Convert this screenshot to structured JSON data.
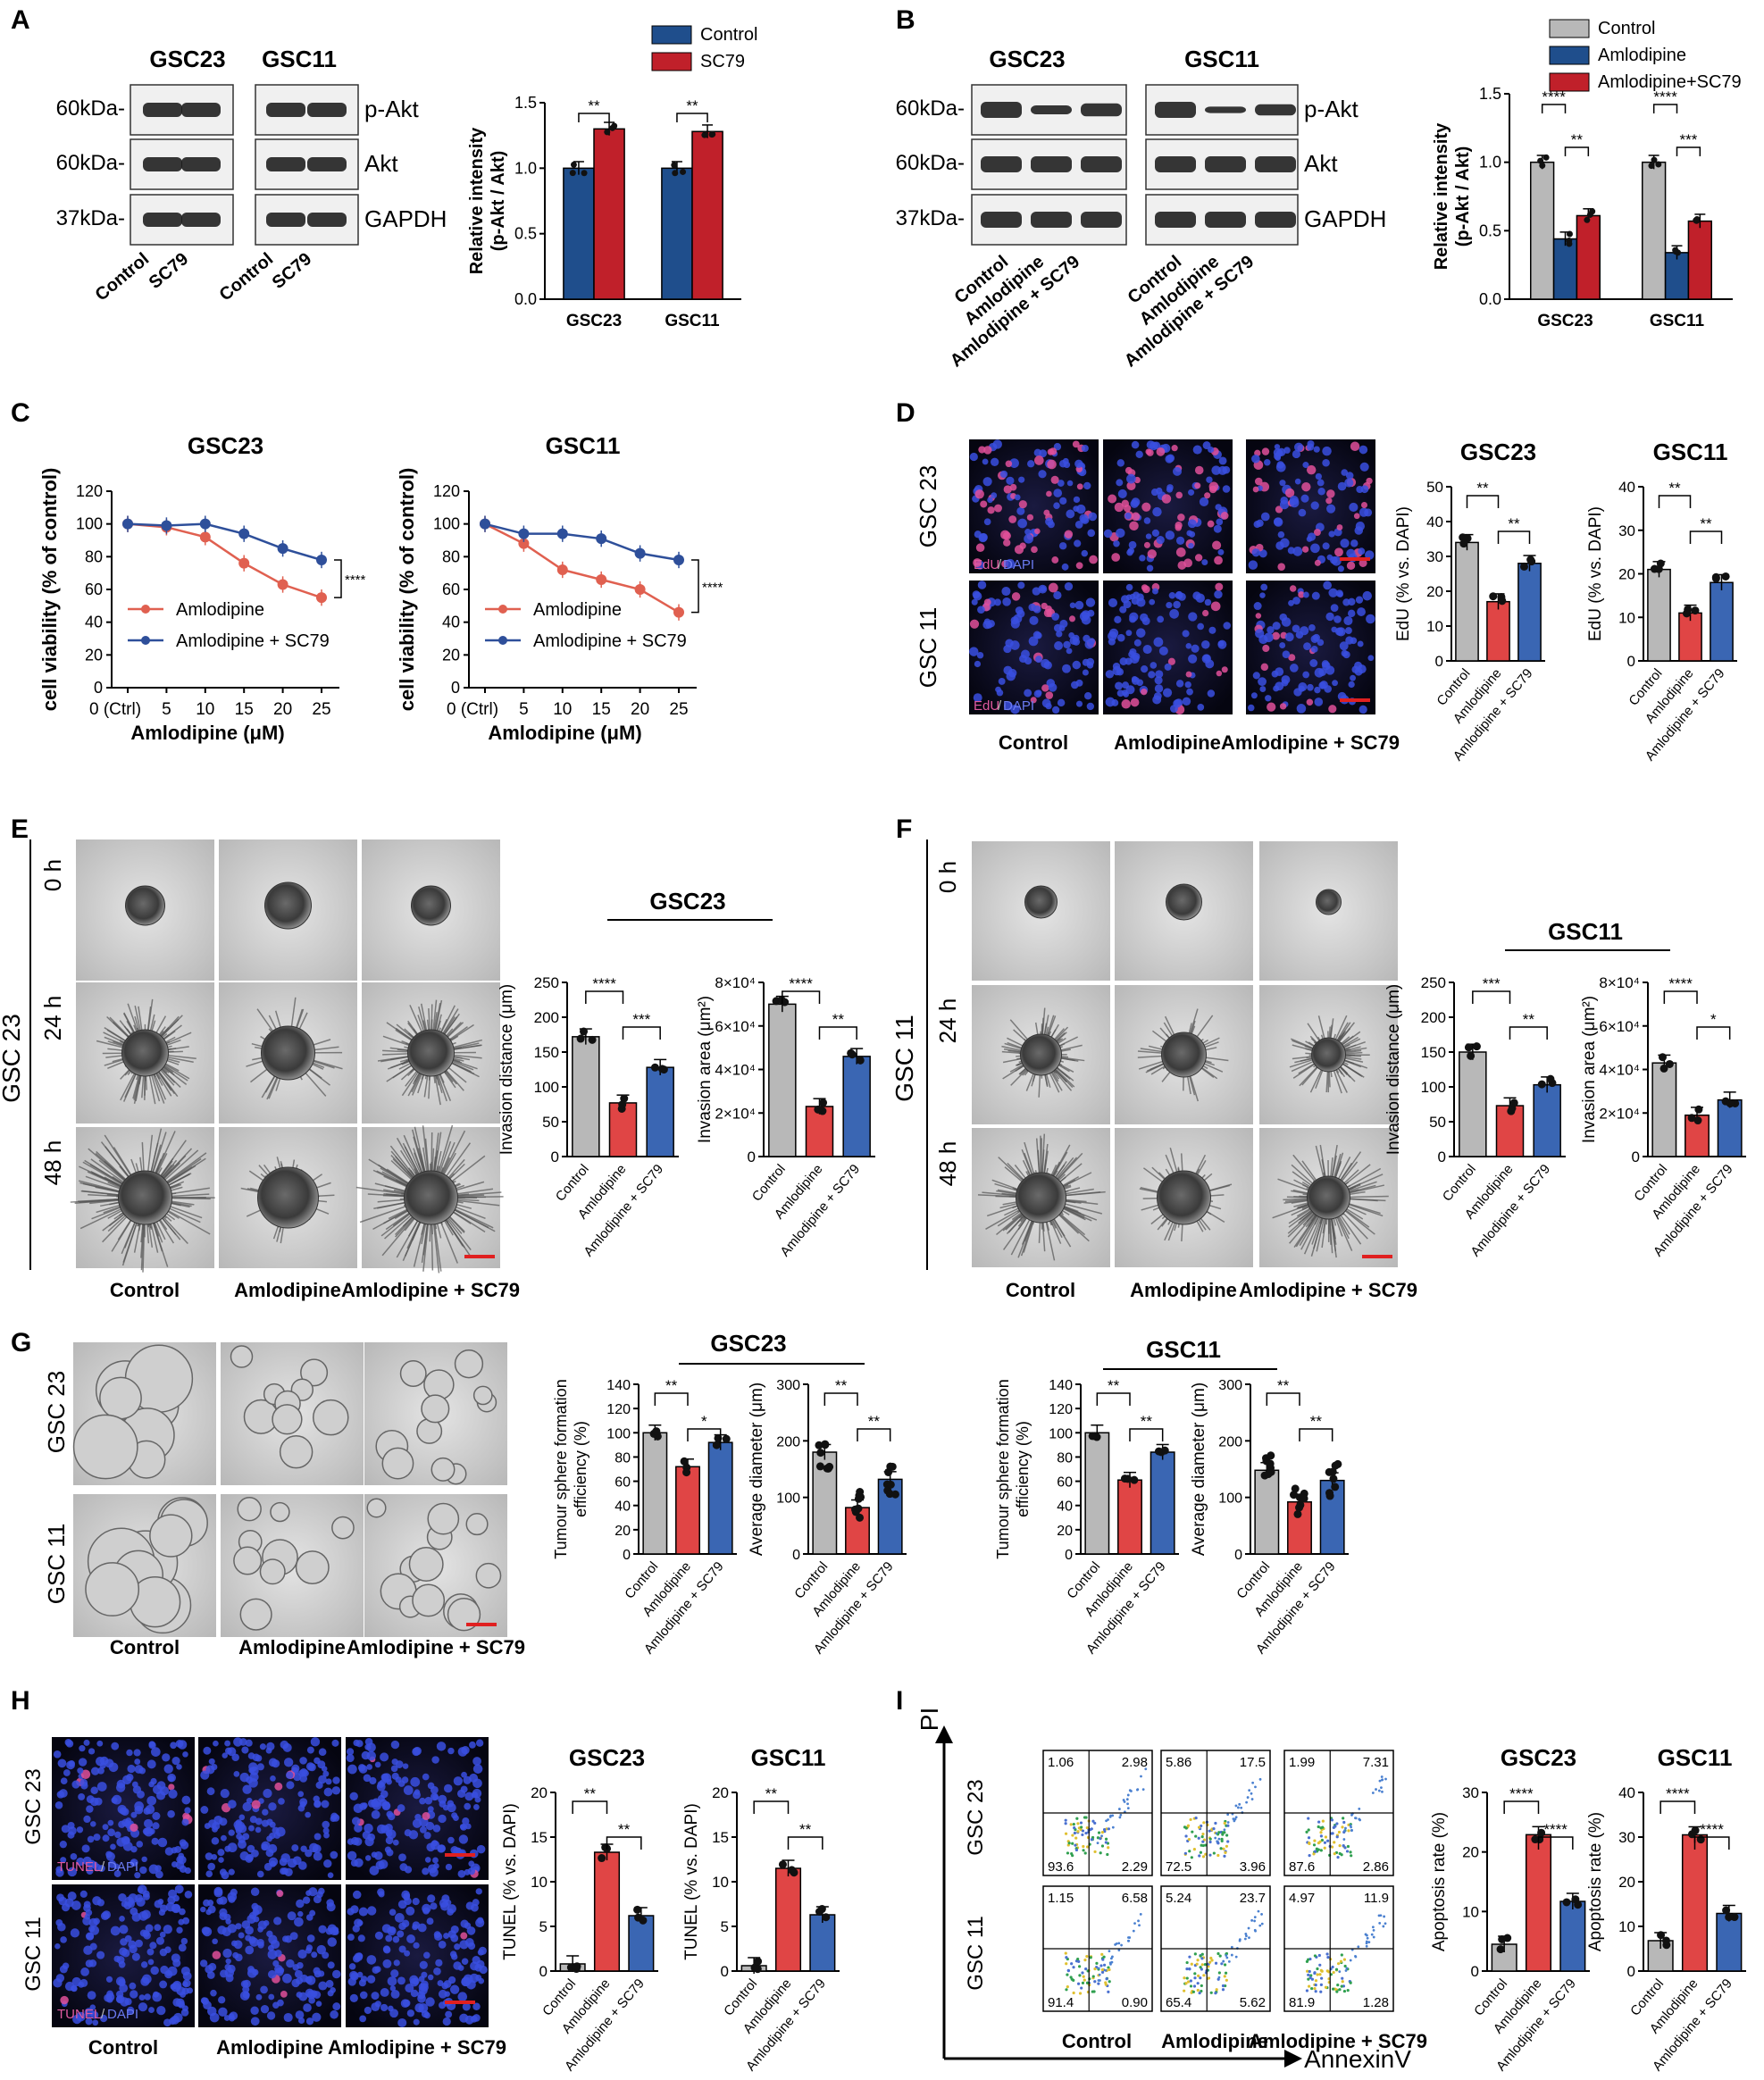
{
  "colors": {
    "control": "#b8b8b8",
    "amlodipine": "#1f4e8c",
    "amlodipine_sc79": "#c0202a",
    "a_control": "#1f4e8c",
    "a_sc79": "#c0202a",
    "blue3": "#3a66b3",
    "red3": "#e04545",
    "line_red": "#e06050",
    "line_blue": "#2e4f9a"
  },
  "panel_letters": [
    "A",
    "B",
    "C",
    "D",
    "E",
    "F",
    "G",
    "H",
    "I"
  ],
  "blots": {
    "A": {
      "cell_lines": [
        "GSC23",
        "GSC11"
      ],
      "kda": [
        "60kDa-",
        "60kDa-",
        "37kDa-"
      ],
      "bands": [
        "p-Akt",
        "Akt",
        "GAPDH"
      ],
      "lanes": [
        "Control",
        "SC79"
      ]
    },
    "B": {
      "cell_lines": [
        "GSC23",
        "GSC11"
      ],
      "kda": [
        "60kDa-",
        "60kDa-",
        "37kDa-"
      ],
      "bands": [
        "p-Akt",
        "Akt",
        "GAPDH"
      ],
      "lanes": [
        "Control",
        "Amlodipine",
        "Amlodipine + SC79"
      ]
    }
  },
  "images": {
    "D": {
      "rows": [
        "GSC 23",
        "GSC 11"
      ],
      "cols": [
        "Control",
        "Amlodipine",
        "Amlodipine + SC79"
      ],
      "stain": [
        "EdU",
        "/",
        "DAPI"
      ]
    },
    "E": {
      "cell_line": "GSC 23",
      "rows": [
        "0 h",
        "24 h",
        "48 h"
      ],
      "cols": [
        "Control",
        "Amlodipine",
        "Amlodipine + SC79"
      ]
    },
    "F": {
      "cell_line": "GSC 11",
      "rows": [
        "0 h",
        "24 h",
        "48 h"
      ],
      "cols": [
        "Control",
        "Amlodipine",
        "Amlodipine + SC79"
      ]
    },
    "G": {
      "rows": [
        "GSC 23",
        "GSC 11"
      ],
      "cols": [
        "Control",
        "Amlodipine",
        "Amlodipine + SC79"
      ]
    },
    "H": {
      "rows": [
        "GSC 23",
        "GSC 11"
      ],
      "cols": [
        "Control",
        "Amlodipine",
        "Amlodipine + SC79"
      ],
      "stain": [
        "TUNEL",
        "/",
        "DAPI"
      ]
    },
    "I": {
      "rows": [
        "GSC 23",
        "GSC 11"
      ],
      "cols": [
        "Control",
        "Amlodipine",
        "Amlodipine + SC79"
      ],
      "y_axis": "PI",
      "x_axis": "AnnexinV",
      "quadrants": [
        [
          [
            "1.06",
            "2.98",
            "93.6",
            "2.29"
          ],
          [
            "5.86",
            "17.5",
            "72.5",
            "3.96"
          ],
          [
            "1.99",
            "7.31",
            "87.6",
            "2.86"
          ]
        ],
        [
          [
            "1.15",
            "6.58",
            "91.4",
            "0.90"
          ],
          [
            "5.24",
            "23.7",
            "65.4",
            "5.62"
          ],
          [
            "4.97",
            "11.9",
            "81.9",
            "1.28"
          ]
        ]
      ]
    }
  },
  "group_titles": {
    "E": "GSC23",
    "F": "GSC11",
    "G1": "GSC23",
    "G2": "GSC11"
  },
  "chart_data": [
    {
      "id": "A_bar",
      "type": "bar",
      "categories": [
        "GSC23",
        "GSC11"
      ],
      "series": [
        {
          "name": "Control",
          "values": [
            1.0,
            1.0
          ]
        },
        {
          "name": "SC79",
          "values": [
            1.3,
            1.28
          ]
        }
      ],
      "ylabel": "Relative intensity\n(p-Akt / Akt)",
      "ylim": [
        0,
        1.5
      ],
      "yticks": [
        "0.0",
        "0.5",
        "1.0",
        "1.5"
      ],
      "significance": [
        "**",
        "**"
      ]
    },
    {
      "id": "B_bar",
      "type": "bar",
      "categories": [
        "GSC23",
        "GSC11"
      ],
      "series": [
        {
          "name": "Control",
          "values": [
            1.0,
            1.0
          ]
        },
        {
          "name": "Amlodipine",
          "values": [
            0.44,
            0.34
          ]
        },
        {
          "name": "Amlodipine+SC79",
          "values": [
            0.61,
            0.57
          ]
        }
      ],
      "ylabel": "Relative intensity\n(p-Akt / Akt)",
      "ylim": [
        0,
        1.5
      ],
      "yticks": [
        "0.0",
        "0.5",
        "1.0",
        "1.5"
      ],
      "significance": [
        [
          "****",
          "**"
        ],
        [
          "****",
          "***"
        ]
      ]
    },
    {
      "id": "C_GSC23",
      "type": "line",
      "title": "GSC23",
      "x": [
        0,
        5,
        10,
        15,
        20,
        25
      ],
      "xticks": [
        "0 (Ctrl)",
        "5",
        "10",
        "15",
        "20",
        "25"
      ],
      "series": [
        {
          "name": "Amlodipine",
          "values": [
            100,
            98,
            92,
            76,
            63,
            55
          ]
        },
        {
          "name": "Amlodipine + SC79",
          "values": [
            100,
            99,
            100,
            94,
            85,
            78
          ]
        }
      ],
      "xlabel": "Amlodipine (μM)",
      "ylabel": "cell viability (% of control)",
      "ylim": [
        0,
        120
      ],
      "yticks": [
        "0",
        "20",
        "40",
        "60",
        "80",
        "100",
        "120"
      ],
      "significance": "****"
    },
    {
      "id": "C_GSC11",
      "type": "line",
      "title": "GSC11",
      "x": [
        0,
        5,
        10,
        15,
        20,
        25
      ],
      "xticks": [
        "0 (Ctrl)",
        "5",
        "10",
        "15",
        "20",
        "25"
      ],
      "series": [
        {
          "name": "Amlodipine",
          "values": [
            100,
            88,
            72,
            66,
            60,
            46
          ]
        },
        {
          "name": "Amlodipine + SC79",
          "values": [
            100,
            94,
            94,
            91,
            82,
            78
          ]
        }
      ],
      "xlabel": "Amlodipine (μM)",
      "ylabel": "cell viability (% of control)",
      "ylim": [
        0,
        120
      ],
      "yticks": [
        "0",
        "20",
        "40",
        "60",
        "80",
        "100",
        "120"
      ],
      "significance": "****"
    },
    {
      "id": "D_GSC23",
      "type": "bar",
      "title": "GSC23",
      "categories": [
        "Control",
        "Amlodipine",
        "Amlodipine + SC79"
      ],
      "values": [
        34,
        17,
        28
      ],
      "ylabel": "EdU (% vs. DAPI)",
      "ylim": [
        0,
        50
      ],
      "yticks": [
        "0",
        "10",
        "20",
        "30",
        "40",
        "50"
      ],
      "significance": [
        "**",
        "**"
      ]
    },
    {
      "id": "D_GSC11",
      "type": "bar",
      "title": "GSC11",
      "categories": [
        "Control",
        "Amlodipine",
        "Amlodipine + SC79"
      ],
      "values": [
        21,
        11,
        18
      ],
      "ylabel": "EdU (% vs. DAPI)",
      "ylim": [
        0,
        40
      ],
      "yticks": [
        "0",
        "10",
        "20",
        "30",
        "40"
      ],
      "significance": [
        "**",
        "**"
      ]
    },
    {
      "id": "E_dist",
      "type": "bar",
      "categories": [
        "Control",
        "Amlodipine",
        "Amlodipine + SC79"
      ],
      "values": [
        172,
        77,
        128
      ],
      "ylabel": "Invasion distance (μm)",
      "ylim": [
        0,
        250
      ],
      "yticks": [
        "0",
        "50",
        "100",
        "150",
        "200",
        "250"
      ],
      "significance": [
        "****",
        "***"
      ]
    },
    {
      "id": "E_area",
      "type": "bar",
      "categories": [
        "Control",
        "Amlodipine",
        "Amlodipine + SC79"
      ],
      "values": [
        70000,
        23000,
        46000
      ],
      "ylabel": "Invasion area (μm²)",
      "ylim": [
        0,
        80000
      ],
      "yticks": [
        "0",
        "2×10⁴",
        "4×10⁴",
        "6×10⁴",
        "8×10⁴"
      ],
      "significance": [
        "****",
        "**"
      ]
    },
    {
      "id": "F_dist",
      "type": "bar",
      "categories": [
        "Control",
        "Amlodipine",
        "Amlodipine + SC79"
      ],
      "values": [
        150,
        73,
        103
      ],
      "ylabel": "Invasion distance (μm)",
      "ylim": [
        0,
        250
      ],
      "yticks": [
        "0",
        "50",
        "100",
        "150",
        "200",
        "250"
      ],
      "significance": [
        "***",
        "**"
      ]
    },
    {
      "id": "F_area",
      "type": "bar",
      "categories": [
        "Control",
        "Amlodipine",
        "Amlodipine + SC79"
      ],
      "values": [
        43000,
        19000,
        26000
      ],
      "ylabel": "Invasion area (μm²)",
      "ylim": [
        0,
        80000
      ],
      "yticks": [
        "0",
        "2×10⁴",
        "4×10⁴",
        "6×10⁴",
        "8×10⁴"
      ],
      "significance": [
        "****",
        "*"
      ]
    },
    {
      "id": "G23_eff",
      "type": "bar",
      "categories": [
        "Control",
        "Amlodipine",
        "Amlodipine + SC79"
      ],
      "values": [
        100,
        72,
        92
      ],
      "ylabel": "Tumour sphere formation\nefficiency (%)",
      "ylim": [
        0,
        140
      ],
      "yticks": [
        "0",
        "20",
        "40",
        "60",
        "80",
        "100",
        "120",
        "140"
      ],
      "significance": [
        "**",
        "*"
      ]
    },
    {
      "id": "G23_diam",
      "type": "bar",
      "categories": [
        "Control",
        "Amlodipine",
        "Amlodipine + SC79"
      ],
      "values": [
        180,
        82,
        132
      ],
      "ylabel": "Average diameter (μm)",
      "ylim": [
        0,
        300
      ],
      "yticks": [
        "0",
        "100",
        "200",
        "300"
      ],
      "significance": [
        "**",
        "**"
      ]
    },
    {
      "id": "G11_eff",
      "type": "bar",
      "categories": [
        "Control",
        "Amlodipine",
        "Amlodipine + SC79"
      ],
      "values": [
        100,
        61,
        84
      ],
      "ylabel": "Tumour sphere formation\nefficiency (%)",
      "ylim": [
        0,
        140
      ],
      "yticks": [
        "0",
        "20",
        "40",
        "60",
        "80",
        "100",
        "120",
        "140"
      ],
      "significance": [
        "**",
        "**"
      ]
    },
    {
      "id": "G11_diam",
      "type": "bar",
      "categories": [
        "Control",
        "Amlodipine",
        "Amlodipine + SC79"
      ],
      "values": [
        148,
        92,
        130
      ],
      "ylabel": "Average diameter (μm)",
      "ylim": [
        0,
        300
      ],
      "yticks": [
        "0",
        "100",
        "200",
        "300"
      ],
      "significance": [
        "**",
        "**"
      ]
    },
    {
      "id": "H_GSC23",
      "type": "bar",
      "title": "GSC23",
      "categories": [
        "Control",
        "Amlodipine",
        "Amlodipine + SC79"
      ],
      "values": [
        0.8,
        13.3,
        6.2
      ],
      "ylabel": "TUNEL (% vs. DAPI)",
      "ylim": [
        0,
        20
      ],
      "yticks": [
        "0",
        "5",
        "10",
        "15",
        "20"
      ],
      "significance": [
        "**",
        "**"
      ]
    },
    {
      "id": "H_GSC11",
      "type": "bar",
      "title": "GSC11",
      "categories": [
        "Control",
        "Amlodipine",
        "Amlodipine + SC79"
      ],
      "values": [
        0.6,
        11.5,
        6.3
      ],
      "ylabel": "TUNEL (% vs. DAPI)",
      "ylim": [
        0,
        20
      ],
      "yticks": [
        "0",
        "5",
        "10",
        "15",
        "20"
      ],
      "significance": [
        "**",
        "**"
      ]
    },
    {
      "id": "I_GSC23",
      "type": "bar",
      "title": "GSC23",
      "categories": [
        "Control",
        "Amlodipine",
        "Amlodipine + SC79"
      ],
      "values": [
        4.5,
        22.9,
        11.7
      ],
      "ylabel": "Apoptosis rate (%)",
      "ylim": [
        0,
        30
      ],
      "yticks": [
        "0",
        "10",
        "20",
        "30"
      ],
      "significance": [
        "****",
        "****"
      ]
    },
    {
      "id": "I_GSC11",
      "type": "bar",
      "title": "GSC11",
      "categories": [
        "Control",
        "Amlodipine",
        "Amlodipine + SC79"
      ],
      "values": [
        6.8,
        30.5,
        12.9
      ],
      "ylabel": "Apoptosis rate (%)",
      "ylim": [
        0,
        40
      ],
      "yticks": [
        "0",
        "10",
        "20",
        "30",
        "40"
      ],
      "significance": [
        "****",
        "****"
      ]
    }
  ]
}
